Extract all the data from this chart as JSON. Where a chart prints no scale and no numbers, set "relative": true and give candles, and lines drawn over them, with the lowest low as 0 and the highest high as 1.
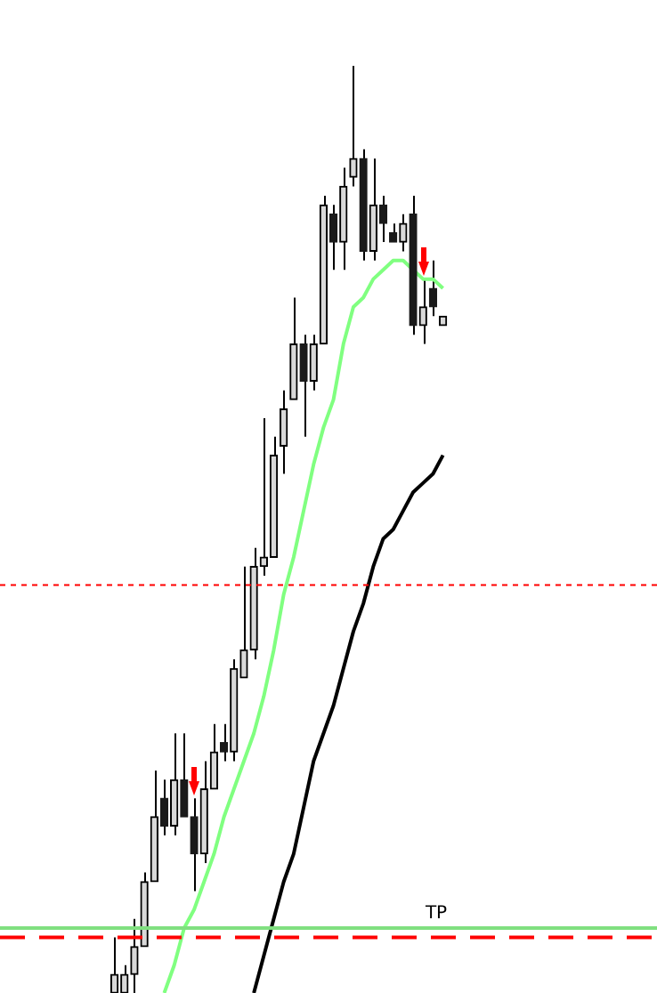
{
  "chart_data": {
    "type": "candlestick",
    "relative": true,
    "categories": [
      null,
      null,
      null,
      null,
      null,
      null,
      null,
      null,
      null,
      null,
      null,
      null,
      null,
      null,
      null,
      null,
      null,
      null,
      null,
      null,
      null,
      null,
      null,
      null,
      null,
      null,
      null,
      null,
      null,
      null,
      null,
      null,
      null,
      null,
      null,
      null,
      null,
      null,
      null,
      null,
      null,
      null,
      null,
      null,
      null,
      null,
      null,
      null,
      null,
      null,
      null,
      null,
      null,
      null,
      null,
      null,
      null,
      null,
      null,
      null,
      null,
      null,
      null,
      null,
      null,
      null
    ],
    "ohlc": [
      null,
      null,
      null,
      null,
      null,
      null,
      null,
      null,
      null,
      null,
      null,
      [
        0.0,
        0.06,
        0.0,
        0.02
      ],
      [
        0.0,
        0.03,
        0.0,
        0.02
      ],
      [
        0.02,
        0.08,
        0.0,
        0.05
      ],
      [
        0.05,
        0.13,
        0.05,
        0.12
      ],
      [
        0.12,
        0.24,
        0.12,
        0.19
      ],
      [
        0.21,
        0.23,
        0.17,
        0.18
      ],
      [
        0.18,
        0.28,
        0.17,
        0.23
      ],
      [
        0.23,
        0.28,
        0.19,
        0.19
      ],
      [
        0.19,
        0.21,
        0.11,
        0.15
      ],
      [
        0.15,
        0.25,
        0.14,
        0.22
      ],
      [
        0.22,
        0.29,
        0.22,
        0.26
      ],
      [
        0.27,
        0.29,
        0.25,
        0.26
      ],
      [
        0.26,
        0.36,
        0.25,
        0.35
      ],
      [
        0.34,
        0.46,
        0.34,
        0.37
      ],
      [
        0.37,
        0.48,
        0.36,
        0.46
      ],
      [
        0.46,
        0.62,
        0.45,
        0.47
      ],
      [
        0.47,
        0.6,
        0.47,
        0.58
      ],
      [
        0.59,
        0.65,
        0.56,
        0.63
      ],
      [
        0.64,
        0.75,
        0.64,
        0.7
      ],
      [
        0.7,
        0.71,
        0.6,
        0.66
      ],
      [
        0.66,
        0.71,
        0.65,
        0.7
      ],
      [
        0.7,
        0.86,
        0.7,
        0.85
      ],
      [
        0.84,
        0.85,
        0.78,
        0.81
      ],
      [
        0.81,
        0.89,
        0.78,
        0.87
      ],
      [
        0.88,
        1.0,
        0.87,
        0.9
      ],
      [
        0.9,
        0.91,
        0.79,
        0.8
      ],
      [
        0.8,
        0.9,
        0.79,
        0.85
      ],
      [
        0.85,
        0.86,
        0.81,
        0.83
      ],
      [
        0.82,
        0.83,
        0.81,
        0.81
      ],
      [
        0.81,
        0.84,
        0.8,
        0.83
      ],
      [
        0.84,
        0.86,
        0.71,
        0.72
      ],
      [
        0.72,
        0.77,
        0.7,
        0.74
      ],
      [
        0.76,
        0.79,
        0.73,
        0.74
      ],
      [
        0.72,
        0.73,
        0.72,
        0.73
      ],
      null,
      null,
      null,
      null,
      null,
      null,
      null,
      null,
      null,
      null,
      null,
      null,
      null,
      null,
      null,
      null,
      null,
      null,
      null,
      null,
      null
    ],
    "series": [
      {
        "type": "line",
        "color": "#80ff80",
        "values": [
          null,
          null,
          null,
          null,
          null,
          null,
          null,
          null,
          null,
          null,
          null,
          null,
          null,
          null,
          null,
          null,
          0.0,
          0.03,
          0.07,
          0.09,
          0.12,
          0.15,
          0.19,
          0.22,
          0.25,
          0.28,
          0.32,
          0.37,
          0.43,
          0.47,
          0.52,
          0.57,
          0.61,
          0.64,
          0.7,
          0.74,
          0.75,
          0.77,
          0.78,
          0.79,
          0.79,
          0.78,
          0.77,
          0.77,
          0.76,
          null,
          null,
          null,
          null,
          null,
          null,
          null,
          null,
          null,
          null,
          null,
          null,
          null,
          null,
          null,
          null,
          null,
          null,
          null,
          null,
          null
        ]
      },
      {
        "type": "line",
        "color": "#000000",
        "values": [
          null,
          null,
          null,
          null,
          null,
          null,
          null,
          null,
          null,
          null,
          null,
          null,
          null,
          null,
          null,
          null,
          null,
          null,
          null,
          null,
          null,
          null,
          null,
          null,
          null,
          0.0,
          0.04,
          0.08,
          0.12,
          0.15,
          0.2,
          0.25,
          0.28,
          0.31,
          0.35,
          0.39,
          0.42,
          0.46,
          0.49,
          0.5,
          0.52,
          0.54,
          0.55,
          0.56,
          0.58,
          null,
          null,
          null,
          null,
          null,
          null,
          null,
          null,
          null,
          null,
          null,
          null,
          null,
          null,
          null,
          null,
          null,
          null,
          null,
          null,
          null
        ]
      }
    ],
    "ref_lines": [
      {
        "axis": "y",
        "value": 0.44,
        "color": "#ff0000",
        "line_style": "dotted"
      },
      {
        "axis": "y",
        "value": 0.07,
        "color": "#80e080",
        "line_style": "solid",
        "label": "TP"
      },
      {
        "axis": "y",
        "value": 0.06,
        "color": "#ff0000",
        "line_style": "dashed"
      }
    ]
  }
}
